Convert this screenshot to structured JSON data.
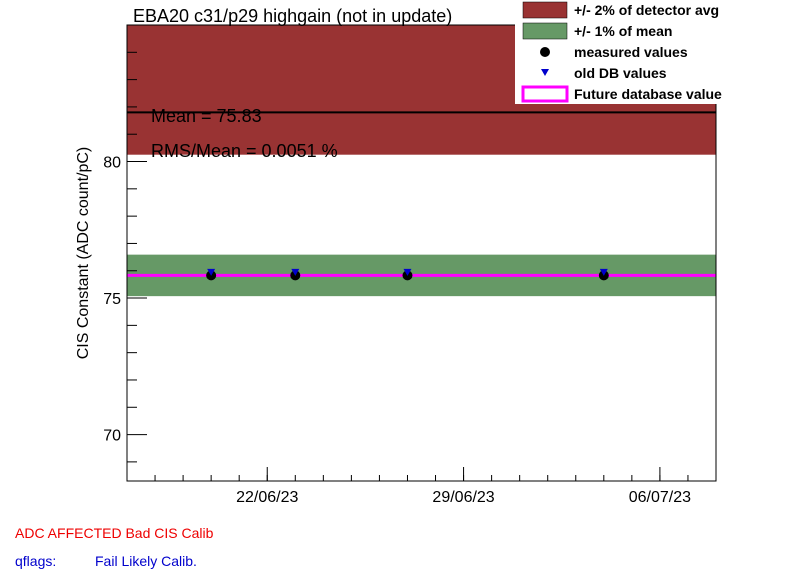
{
  "chart_data": {
    "type": "scatter",
    "title": "EBA20 c31/p29 highgain (not in update)",
    "ylabel": "CIS Constant (ADC count/pC)",
    "xlabel": "",
    "ylim": [
      68.3,
      85.0
    ],
    "x_ticks": [
      "22/06/23",
      "29/06/23",
      "06/07/23"
    ],
    "y_ticks": [
      70,
      75,
      80
    ],
    "x_range_days": [
      "2023-06-17",
      "2023-07-08"
    ],
    "bands": [
      {
        "name": "+/- 2% of detector avg",
        "color": "#993333",
        "ymin": 80.25,
        "ymax": 85.0
      },
      {
        "name": "+/- 1% of mean",
        "color": "#669966",
        "ymin": 75.07,
        "ymax": 76.59
      }
    ],
    "detector_avg_line": 81.8,
    "future_db_value": 75.83,
    "series": [
      {
        "name": "measured values",
        "marker": "circle",
        "color": "#000000",
        "x": [
          "2023-06-20",
          "2023-06-23",
          "2023-06-27",
          "2023-07-04"
        ],
        "y": [
          75.83,
          75.83,
          75.83,
          75.83
        ]
      },
      {
        "name": "old DB values",
        "marker": "triangle-down",
        "color": "#0000cc",
        "x": [
          "2023-06-20",
          "2023-06-23",
          "2023-06-27",
          "2023-07-04"
        ],
        "y": [
          75.92,
          75.92,
          75.92,
          75.92
        ]
      }
    ],
    "legend": [
      {
        "label": "+/- 2% of detector avg",
        "kind": "box",
        "color": "#993333"
      },
      {
        "label": "+/- 1% of mean",
        "kind": "box",
        "color": "#669966"
      },
      {
        "label": "measured values",
        "kind": "circle",
        "color": "#000000"
      },
      {
        "label": "old DB values",
        "kind": "triangle",
        "color": "#0000cc"
      },
      {
        "label": "Future database value",
        "kind": "outline",
        "color": "#ff00ff"
      }
    ],
    "stats": {
      "mean": "Mean = 75.83",
      "rms": "RMS/Mean = 0.0051 %"
    }
  },
  "footer": {
    "status": "ADC AFFECTED   Bad CIS Calib",
    "qflags_label": "qflags:",
    "qflags_value": "Fail Likely Calib."
  },
  "colors": {
    "status": "#ee0000",
    "qflags": "#0000cc"
  }
}
